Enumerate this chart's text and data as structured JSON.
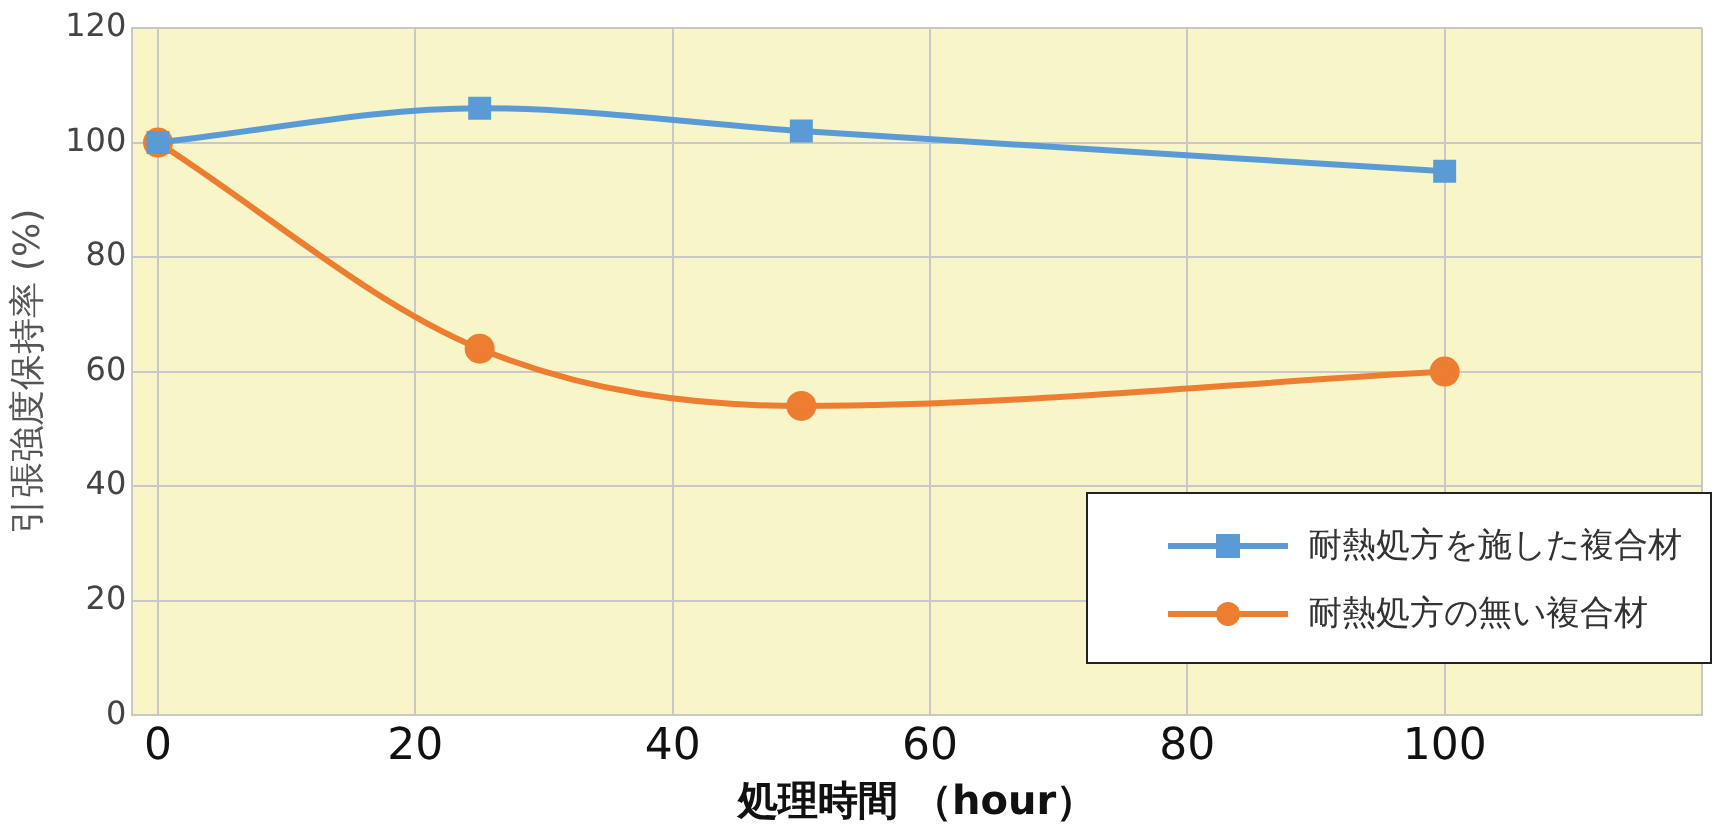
{
  "chart_data": {
    "type": "line",
    "xlabel": "処理時間 （hour）",
    "ylabel": "引張強度保持率 (%)",
    "xlim": [
      -2,
      120
    ],
    "xticks": [
      0,
      20,
      40,
      60,
      80,
      100,
      {
        "value": 120,
        "label": null
      }
    ],
    "ylim": [
      0,
      120
    ],
    "yticks": [
      0,
      20,
      40,
      60,
      80,
      100,
      120
    ],
    "grid": true,
    "legend": "bottom right",
    "line_style": "solid",
    "series": [
      {
        "name": "耐熱処方を施した複合材",
        "color": "#5b9bd5",
        "marker": "square",
        "x": [
          0,
          25,
          50,
          100
        ],
        "values": [
          100,
          106,
          102,
          95
        ]
      },
      {
        "name": "耐熱処方の無い複合材",
        "color": "#ed7d31",
        "marker": "circle",
        "x": [
          0,
          25,
          50,
          100
        ],
        "values": [
          100,
          64,
          54,
          60
        ]
      }
    ]
  }
}
